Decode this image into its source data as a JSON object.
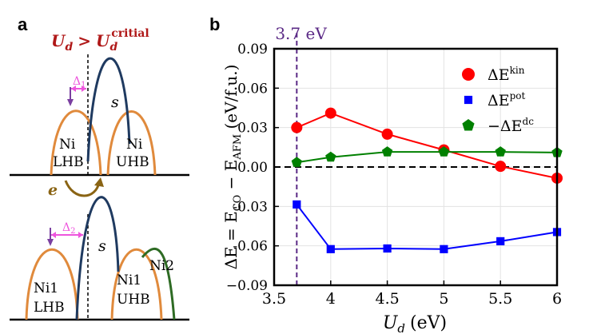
{
  "panel_a": {
    "label": "a",
    "condition": {
      "U": "U",
      "U_sub": "d",
      "op": ">",
      "crit_sub": "d",
      "crit_sup": "critial"
    },
    "delta1": {
      "sym": "Δ",
      "sub": "1"
    },
    "delta2": {
      "sym": "Δ",
      "sub": "2"
    },
    "band_s": "s",
    "top": {
      "lhb_l1": "Ni",
      "lhb_l2": "LHB",
      "uhb_l1": "Ni",
      "uhb_l2": "UHB"
    },
    "electron": "e",
    "bottom": {
      "lhb_l1": "Ni1",
      "lhb_l2": "LHB",
      "uhb_l1": "Ni1",
      "uhb_l2": "UHB",
      "ni2": "Ni2"
    },
    "colors": {
      "band": "#e08a3c",
      "s_band": "#1f3a60",
      "ni2": "#2e6b24",
      "delta_arrow": "#ee55dd",
      "down_arrow": "#7a3fa0",
      "electron": "#8a6414",
      "title": "#b01818"
    }
  },
  "panel_b": {
    "label": "b",
    "critical_label": "3.7 eV",
    "colors": {
      "kin": "#ff0000",
      "pot": "#0000ff",
      "dc": "#008000",
      "vline": "#5b2a86"
    }
  },
  "chart_data": {
    "type": "line",
    "x": [
      3.7,
      4.0,
      4.5,
      5.0,
      5.5,
      6.0
    ],
    "series": [
      {
        "name": "ΔE^kin",
        "label_main": "ΔE",
        "label_sup": "kin",
        "marker": "circle",
        "values": [
          0.03,
          0.041,
          0.025,
          0.013,
          0.0005,
          -0.0085
        ]
      },
      {
        "name": "ΔE^pot",
        "label_main": "ΔE",
        "label_sup": "pot",
        "marker": "square",
        "values": [
          -0.0285,
          -0.0625,
          -0.062,
          -0.0625,
          -0.0565,
          -0.0495
        ]
      },
      {
        "name": "−ΔE^dc",
        "label_main": "−ΔE",
        "label_sup": "dc",
        "marker": "pentagon",
        "values": [
          0.0035,
          0.0075,
          0.0115,
          0.0115,
          0.0115,
          0.011
        ]
      }
    ],
    "xlabel": {
      "main": "U",
      "sub": "d",
      "unit": "(eV)"
    },
    "ylabel": {
      "pre": "ΔE = E",
      "sub1": "CO",
      "mid": " − E",
      "sub2": "AFM",
      "unit": " (eV/f.u.)"
    },
    "xlim": [
      3.5,
      6.0
    ],
    "ylim": [
      -0.09,
      0.09
    ],
    "xticks": [
      3.5,
      4.0,
      4.5,
      5.0,
      5.5,
      6.0
    ],
    "xtick_labels": [
      "3.5",
      "4",
      "4.5",
      "5",
      "5.5",
      "6"
    ],
    "yticks": [
      -0.09,
      -0.06,
      -0.03,
      0.0,
      0.03,
      0.06,
      0.09
    ],
    "ytick_labels": [
      "−0.09",
      "-0.06",
      "-0.03",
      "0.00",
      "0.03",
      "0.06",
      "0.09"
    ],
    "vline": 3.7,
    "hline": 0.0,
    "grid": true,
    "legend": "top-right"
  }
}
